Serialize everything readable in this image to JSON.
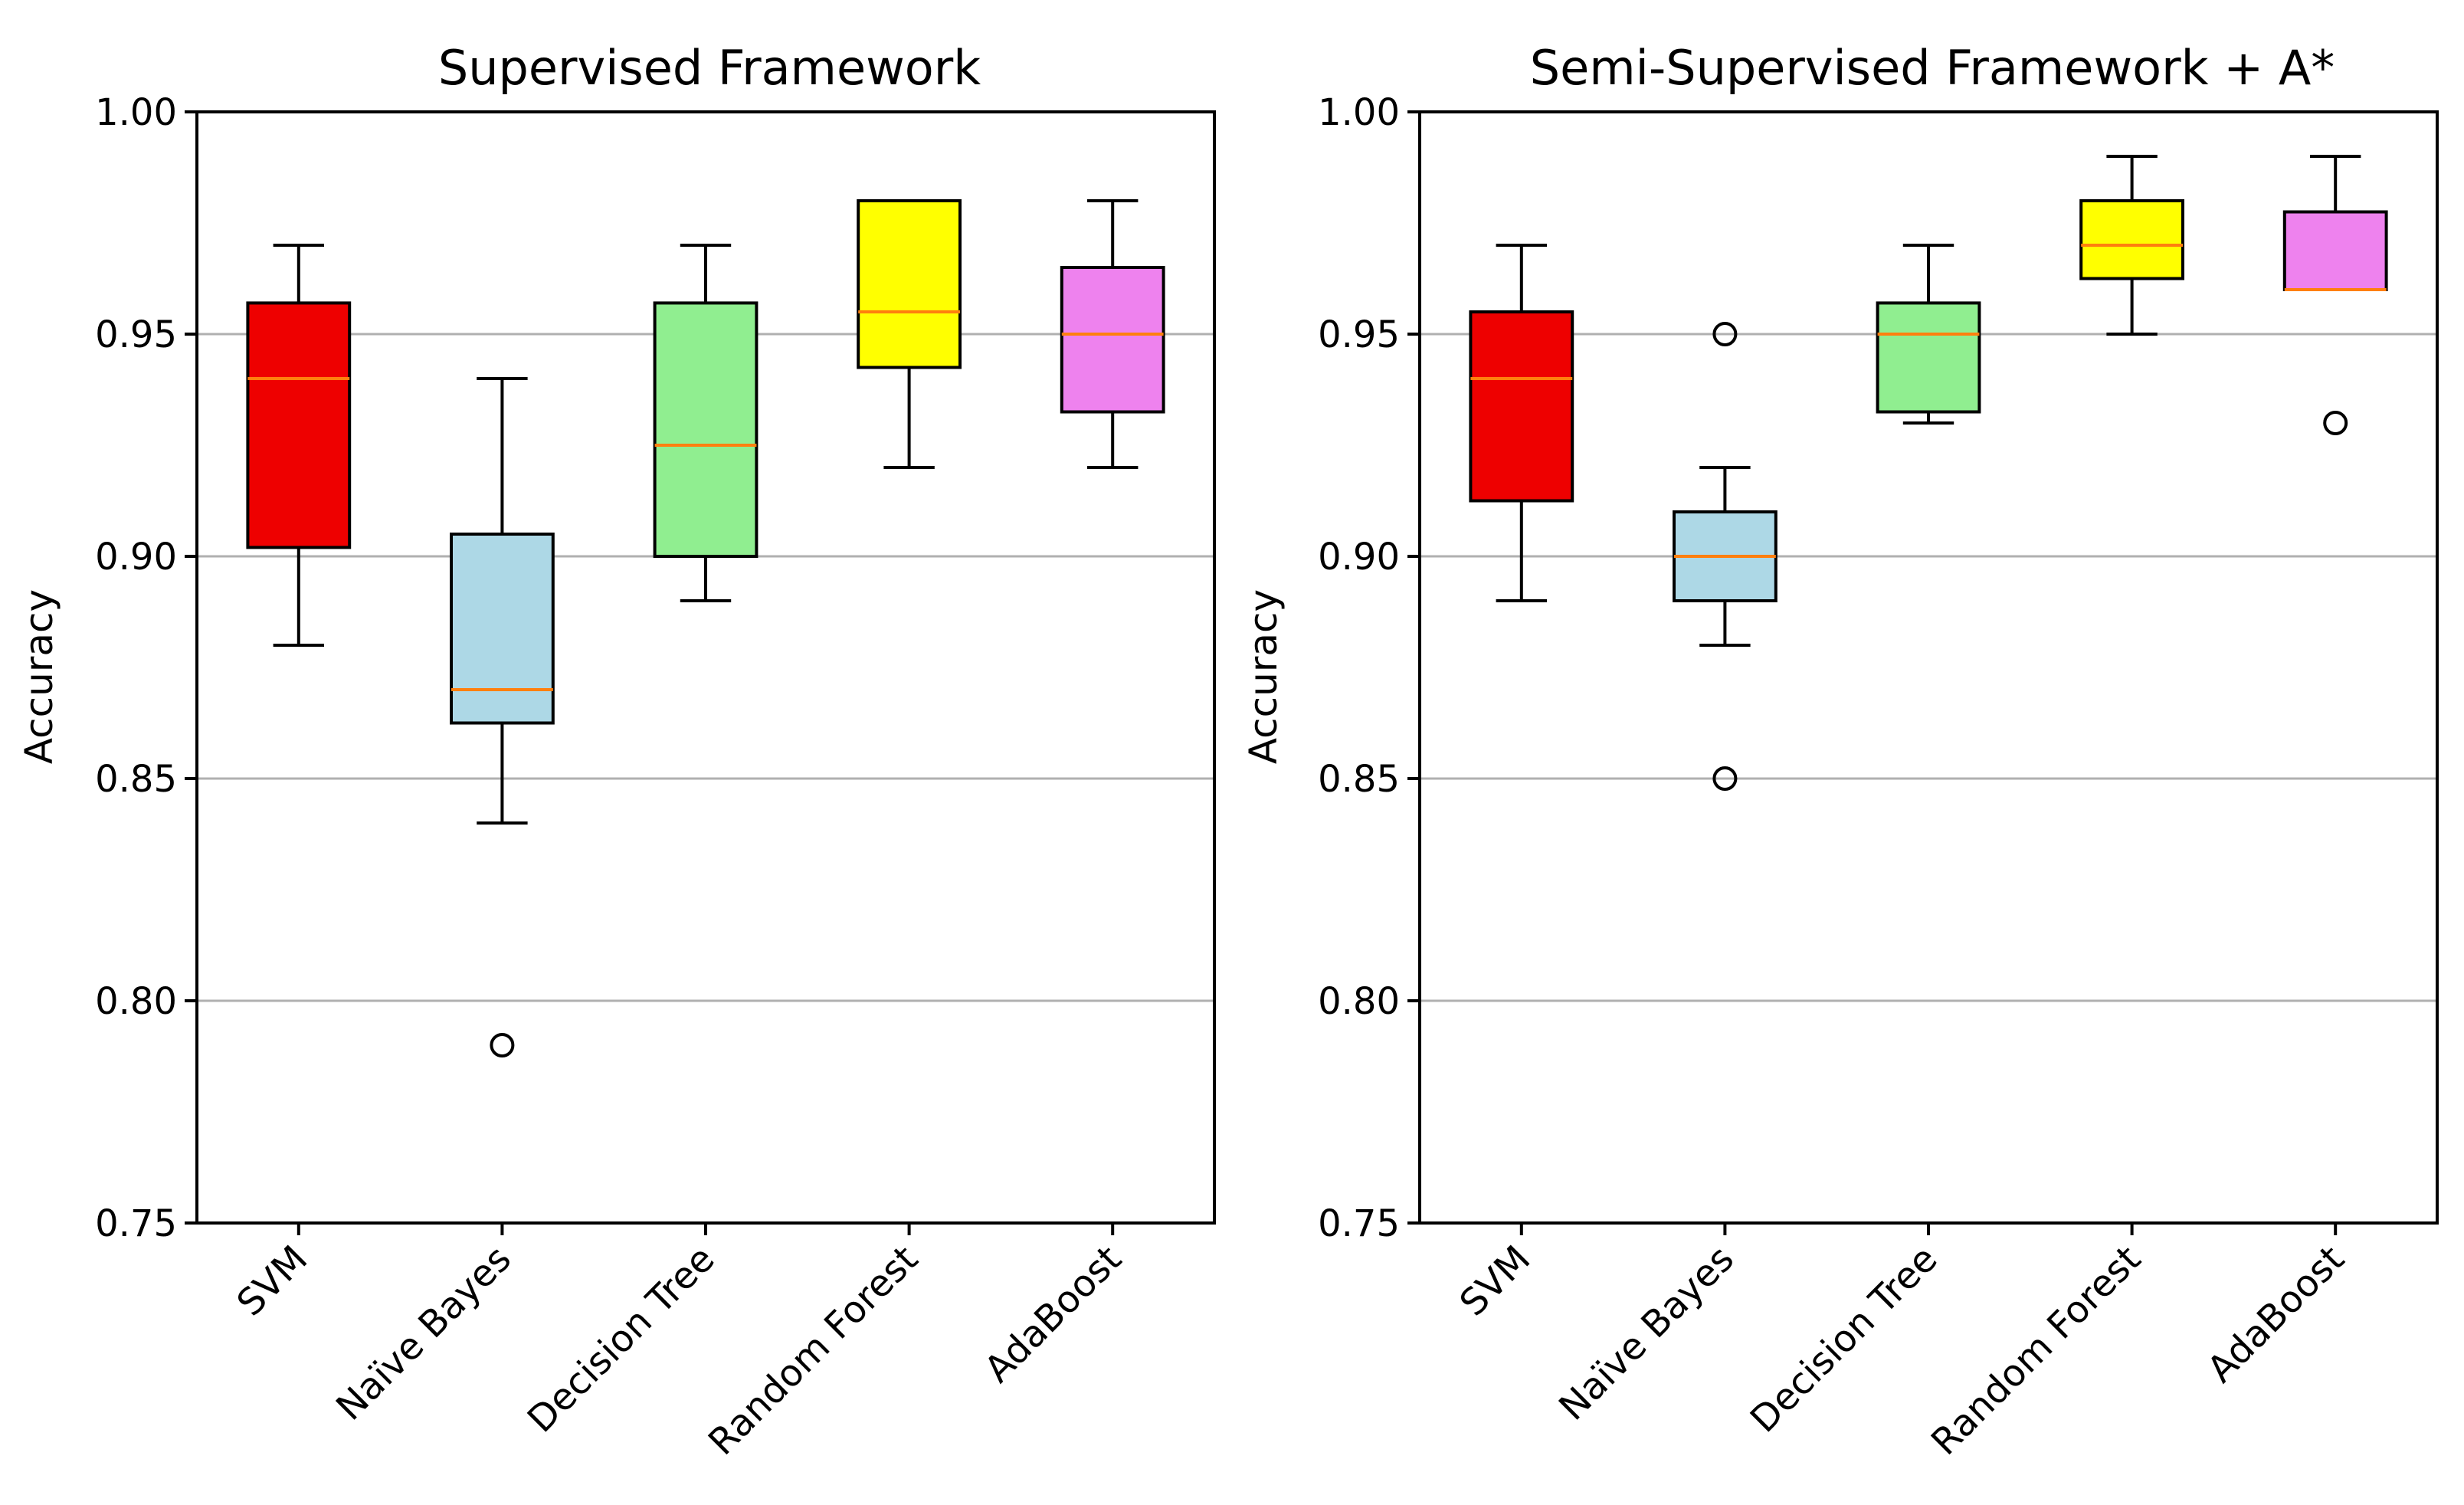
{
  "chart_data": [
    {
      "type": "box",
      "title": "Supervised Framework",
      "xlabel": "",
      "ylabel": "Accuracy",
      "ylim": [
        0.75,
        1.0
      ],
      "yticks": [
        0.75,
        0.8,
        0.85,
        0.9,
        0.95,
        1.0
      ],
      "ytick_labels": [
        "0.75",
        "0.80",
        "0.85",
        "0.90",
        "0.95",
        "1.00"
      ],
      "grid": "horizontal",
      "categories": [
        "SVM",
        "Naïve Bayes",
        "Decision Tree",
        "Random Forest",
        "AdaBoost"
      ],
      "boxes": [
        {
          "name": "SVM",
          "whisker_low": 0.88,
          "q1": 0.902,
          "median": 0.94,
          "q3": 0.957,
          "whisker_high": 0.97,
          "outliers": [],
          "color": "#ee0000"
        },
        {
          "name": "Naïve Bayes",
          "whisker_low": 0.84,
          "q1": 0.8625,
          "median": 0.87,
          "q3": 0.905,
          "whisker_high": 0.94,
          "outliers": [
            0.79
          ],
          "color": "#add8e6"
        },
        {
          "name": "Decision Tree",
          "whisker_low": 0.89,
          "q1": 0.9,
          "median": 0.925,
          "q3": 0.957,
          "whisker_high": 0.97,
          "outliers": [],
          "color": "#90ee90"
        },
        {
          "name": "Random Forest",
          "whisker_low": 0.92,
          "q1": 0.9425,
          "median": 0.955,
          "q3": 0.98,
          "whisker_high": 0.98,
          "outliers": [],
          "color": "#ffff00"
        },
        {
          "name": "AdaBoost",
          "whisker_low": 0.92,
          "q1": 0.9325,
          "median": 0.95,
          "q3": 0.965,
          "whisker_high": 0.98,
          "outliers": [],
          "color": "#ee82ee"
        }
      ]
    },
    {
      "type": "box",
      "title": "Semi-Supervised Framework + A*",
      "xlabel": "",
      "ylabel": "Accuracy",
      "ylim": [
        0.75,
        1.0
      ],
      "yticks": [
        0.75,
        0.8,
        0.85,
        0.9,
        0.95,
        1.0
      ],
      "ytick_labels": [
        "0.75",
        "0.80",
        "0.85",
        "0.90",
        "0.95",
        "1.00"
      ],
      "grid": "horizontal",
      "categories": [
        "SVM",
        "Naïve Bayes",
        "Decision Tree",
        "Random Forest",
        "AdaBoost"
      ],
      "boxes": [
        {
          "name": "SVM",
          "whisker_low": 0.89,
          "q1": 0.9125,
          "median": 0.94,
          "q3": 0.955,
          "whisker_high": 0.97,
          "outliers": [],
          "color": "#ee0000"
        },
        {
          "name": "Naïve Bayes",
          "whisker_low": 0.88,
          "q1": 0.89,
          "median": 0.9,
          "q3": 0.91,
          "whisker_high": 0.92,
          "outliers": [
            0.95,
            0.85
          ],
          "color": "#add8e6"
        },
        {
          "name": "Decision Tree",
          "whisker_low": 0.93,
          "q1": 0.9325,
          "median": 0.95,
          "q3": 0.957,
          "whisker_high": 0.97,
          "outliers": [],
          "color": "#90ee90"
        },
        {
          "name": "Random Forest",
          "whisker_low": 0.95,
          "q1": 0.9625,
          "median": 0.97,
          "q3": 0.98,
          "whisker_high": 0.99,
          "outliers": [],
          "color": "#ffff00"
        },
        {
          "name": "AdaBoost",
          "whisker_low": 0.96,
          "q1": 0.96,
          "median": 0.96,
          "q3": 0.9775,
          "whisker_high": 0.99,
          "outliers": [
            0.93
          ],
          "color": "#ee82ee"
        }
      ]
    }
  ],
  "style": {
    "median_color": "#ff7f0e",
    "grid_color": "#b0b0b0",
    "axis_color": "#000000"
  }
}
